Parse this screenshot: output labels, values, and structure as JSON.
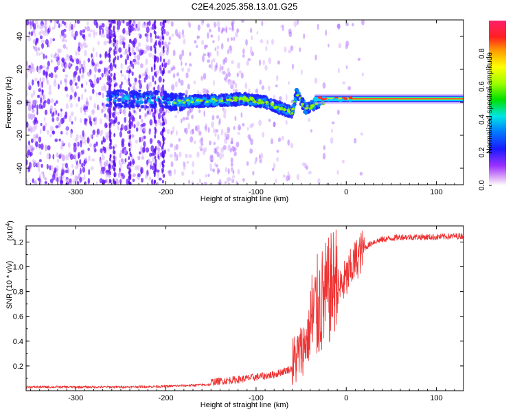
{
  "chart_data": [
    {
      "type": "heatmap",
      "title": "C2E4.2025.358.13.01.G25",
      "xlabel": "Height of straight line (km)",
      "ylabel": "Frequency (Hz)",
      "xlim": [
        -355,
        130
      ],
      "ylim": [
        -50,
        50
      ],
      "xticks": [
        -300,
        -200,
        -100,
        0,
        100
      ],
      "yticks": [
        -40,
        -20,
        0,
        20,
        40
      ],
      "colorbar": {
        "label": "Normalized spectral amplitude",
        "range": [
          0,
          1
        ],
        "ticks": [
          "0.0",
          "0.2",
          "0.4",
          "0.6",
          "0.8"
        ]
      },
      "features": {
        "noise_edge_km": -200,
        "ridge": [
          {
            "x": -200,
            "y": 0
          },
          {
            "x": -150,
            "y": 1
          },
          {
            "x": -110,
            "y": 2
          },
          {
            "x": -90,
            "y": 0
          },
          {
            "x": -75,
            "y": -3
          },
          {
            "x": -60,
            "y": -6
          },
          {
            "x": -55,
            "y": 6
          },
          {
            "x": -45,
            "y": -4
          },
          {
            "x": -30,
            "y": 0
          },
          {
            "x": 0,
            "y": 2
          },
          {
            "x": 130,
            "y": 2
          }
        ]
      }
    },
    {
      "type": "line",
      "xlabel": "Height of straight line (km)",
      "ylabel": "SNR (10 * v/v)",
      "yscale_label": "(x10",
      "yscale_exp": "4",
      "yscale_suffix": ")",
      "xlim": [
        -355,
        130
      ],
      "ylim": [
        0,
        1.33
      ],
      "xticks": [
        -300,
        -200,
        -100,
        0,
        100
      ],
      "yticks": [
        "0.2",
        "0.4",
        "0.6",
        "0.8",
        "1.0",
        "1.2"
      ],
      "series": [
        {
          "name": "SNR",
          "color": "#ee3333",
          "envelope_x": [
            -355,
            -300,
            -250,
            -200,
            -150,
            -120,
            -100,
            -80,
            -60,
            -50,
            -40,
            -30,
            -20,
            -10,
            0,
            10,
            20,
            30,
            40,
            60,
            80,
            100,
            130
          ],
          "envelope_y": [
            0.02,
            0.02,
            0.02,
            0.025,
            0.04,
            0.06,
            0.08,
            0.1,
            0.15,
            0.25,
            0.4,
            0.55,
            0.65,
            0.8,
            0.9,
            1.05,
            1.15,
            1.2,
            1.22,
            1.24,
            1.24,
            1.24,
            1.25
          ]
        }
      ]
    }
  ]
}
